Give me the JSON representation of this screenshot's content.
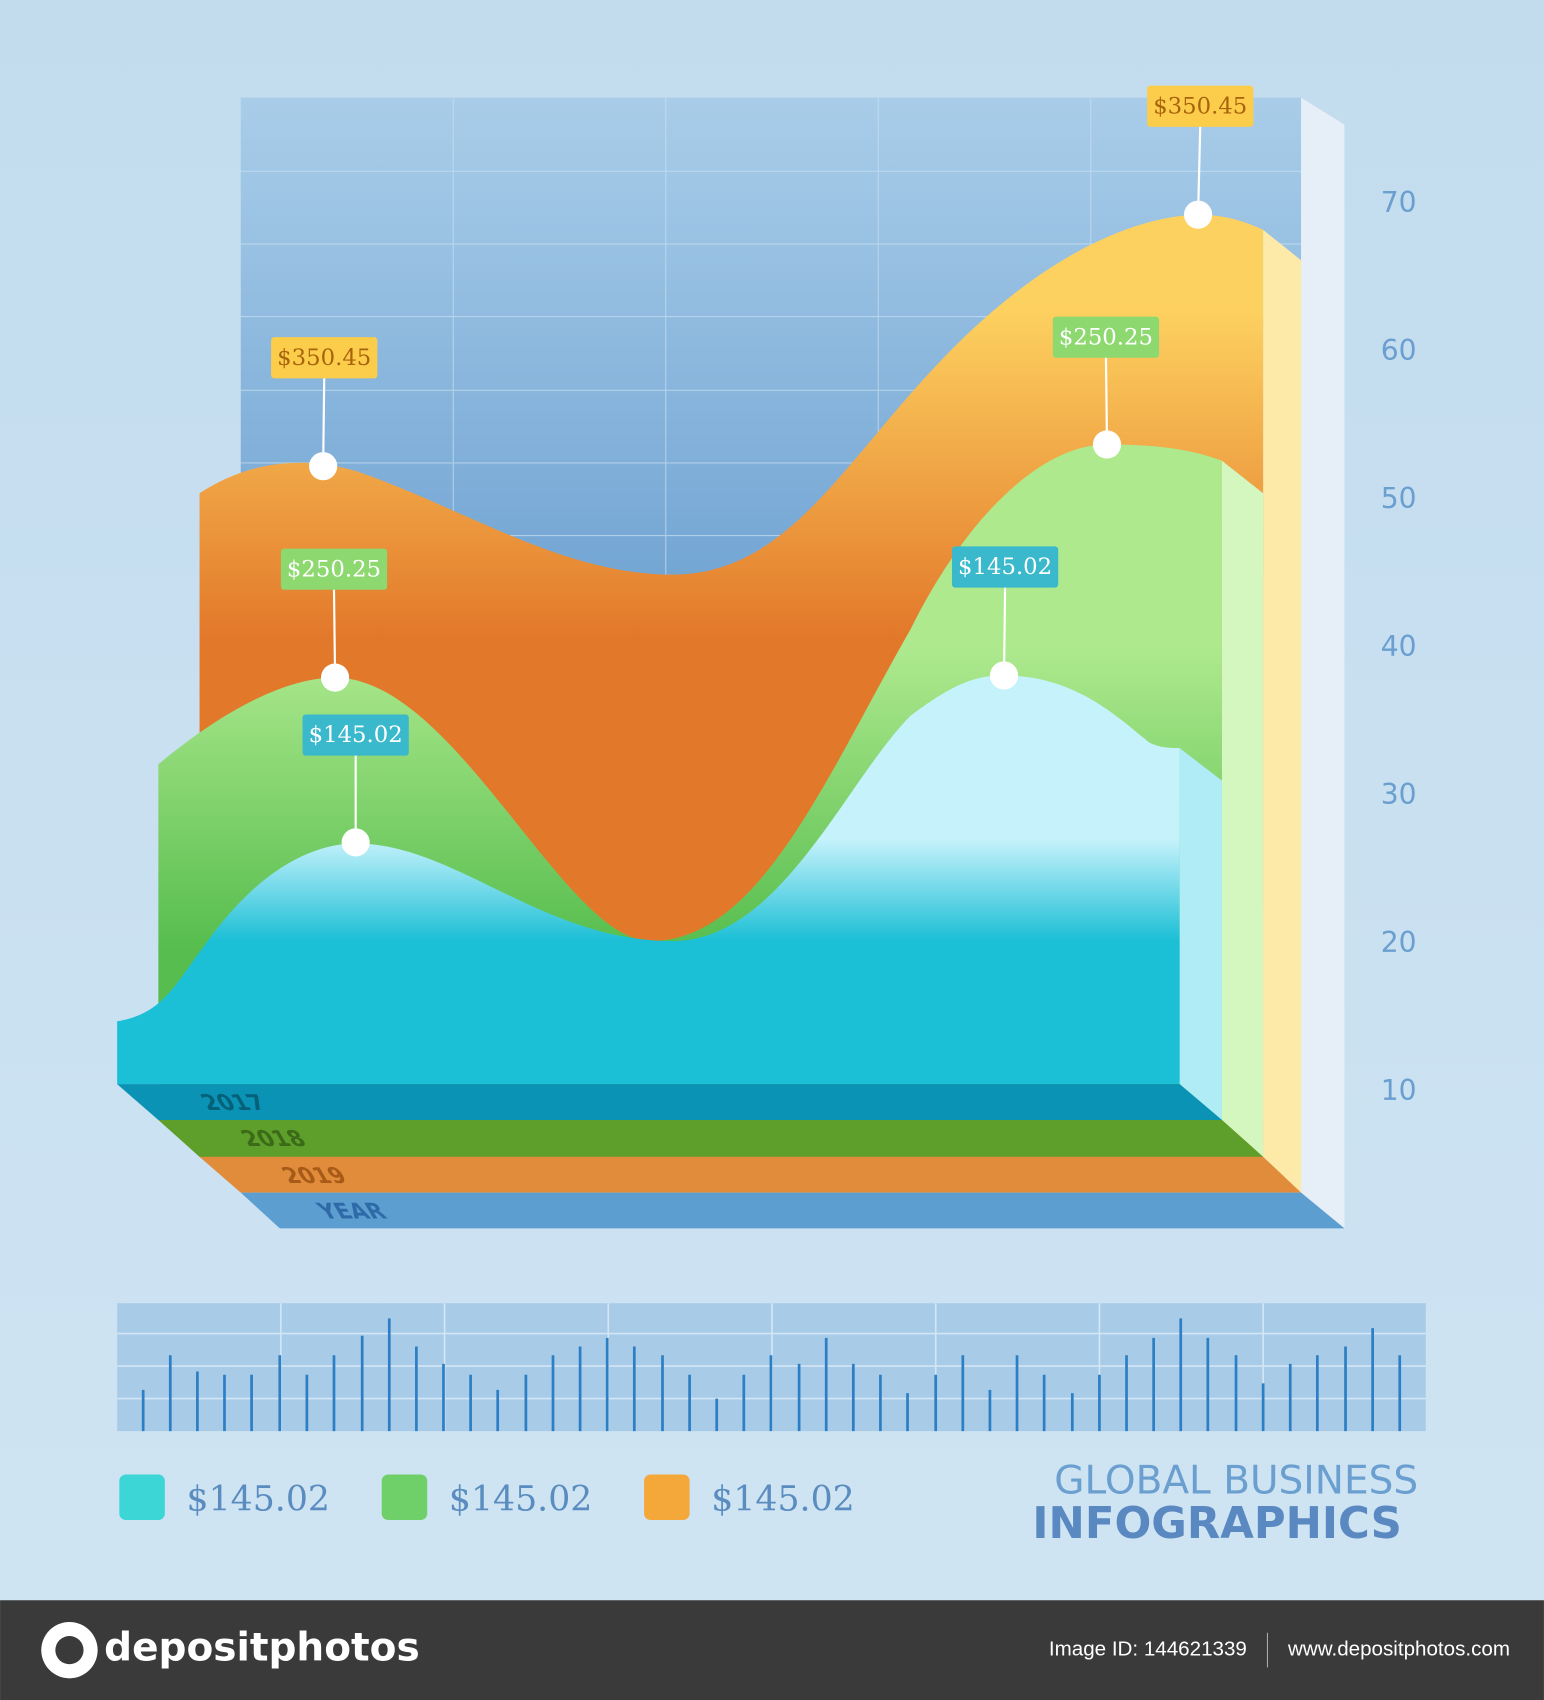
{
  "axis": {
    "ticks": [
      70,
      60,
      50,
      40,
      30,
      20,
      10
    ]
  },
  "callouts": [
    "$350.45",
    "$350.45",
    "$250.25",
    "$250.25",
    "$145.02",
    "$145.02"
  ],
  "depth_labels": [
    "2017",
    "2018",
    "2019",
    "YEAR"
  ],
  "legend": [
    {
      "label": "$145.02",
      "color": "#3cd6d6"
    },
    {
      "label": "$145.02",
      "color": "#6fd06a"
    },
    {
      "label": "$145.02",
      "color": "#f5a83a"
    }
  ],
  "title": {
    "line1": "GLOBAL BUSINESS",
    "line2": "INFOGRAPHICS"
  },
  "footer": {
    "brand": "depositphotos",
    "image_id": "Image ID: 144621339",
    "url": "www.depositphotos.com"
  }
}
